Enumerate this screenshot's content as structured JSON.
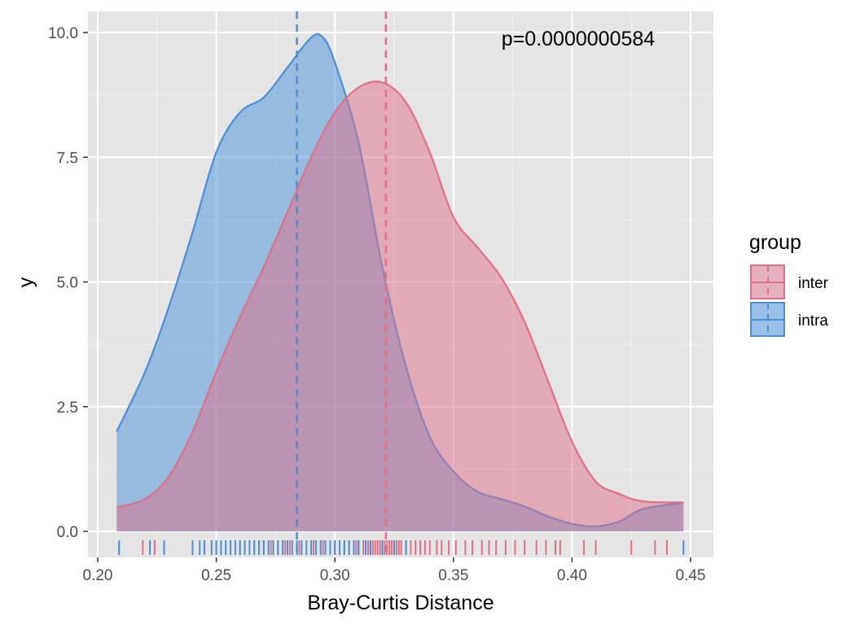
{
  "chart_data": {
    "type": "density",
    "xlabel": "Bray-Curtis Distance",
    "ylabel": "y",
    "xlim": [
      0.2,
      0.45
    ],
    "ylim": [
      0,
      10
    ],
    "x_ticks": [
      "0.20",
      "0.25",
      "0.30",
      "0.35",
      "0.40",
      "0.45"
    ],
    "y_ticks": [
      "0.0",
      "2.5",
      "5.0",
      "7.5",
      "10.0"
    ],
    "annotation": "p=0.0000000584",
    "legend_title": "group",
    "series": [
      {
        "name": "inter",
        "color": "#e07088",
        "mean": 0.3215,
        "density": [
          [
            0.208,
            0.48
          ],
          [
            0.22,
            0.65
          ],
          [
            0.23,
            1.1
          ],
          [
            0.24,
            2.0
          ],
          [
            0.25,
            3.2
          ],
          [
            0.26,
            4.3
          ],
          [
            0.27,
            5.3
          ],
          [
            0.28,
            6.4
          ],
          [
            0.29,
            7.5
          ],
          [
            0.3,
            8.4
          ],
          [
            0.31,
            8.9
          ],
          [
            0.32,
            9.0
          ],
          [
            0.33,
            8.6
          ],
          [
            0.34,
            7.6
          ],
          [
            0.35,
            6.3
          ],
          [
            0.36,
            5.7
          ],
          [
            0.37,
            5.1
          ],
          [
            0.38,
            4.2
          ],
          [
            0.39,
            3.0
          ],
          [
            0.4,
            1.8
          ],
          [
            0.41,
            1.0
          ],
          [
            0.42,
            0.75
          ],
          [
            0.43,
            0.6
          ],
          [
            0.447,
            0.58
          ]
        ],
        "rug": [
          0.209,
          0.219,
          0.224,
          0.245,
          0.26,
          0.266,
          0.27,
          0.273,
          0.276,
          0.279,
          0.281,
          0.285,
          0.291,
          0.295,
          0.3,
          0.304,
          0.306,
          0.309,
          0.31,
          0.312,
          0.314,
          0.315,
          0.316,
          0.317,
          0.318,
          0.319,
          0.32,
          0.321,
          0.322,
          0.323,
          0.324,
          0.325,
          0.326,
          0.327,
          0.328,
          0.33,
          0.332,
          0.334,
          0.336,
          0.338,
          0.34,
          0.343,
          0.345,
          0.348,
          0.351,
          0.355,
          0.358,
          0.362,
          0.365,
          0.368,
          0.372,
          0.376,
          0.38,
          0.385,
          0.389,
          0.393,
          0.395,
          0.405,
          0.41,
          0.425,
          0.435,
          0.44
        ]
      },
      {
        "name": "intra",
        "color": "#4a90d9",
        "mean": 0.284,
        "density": [
          [
            0.208,
            2.0
          ],
          [
            0.22,
            3.2
          ],
          [
            0.23,
            4.5
          ],
          [
            0.24,
            6.0
          ],
          [
            0.25,
            7.6
          ],
          [
            0.26,
            8.4
          ],
          [
            0.27,
            8.7
          ],
          [
            0.28,
            9.3
          ],
          [
            0.29,
            9.9
          ],
          [
            0.295,
            9.9
          ],
          [
            0.3,
            9.4
          ],
          [
            0.31,
            7.8
          ],
          [
            0.32,
            5.3
          ],
          [
            0.33,
            3.3
          ],
          [
            0.34,
            1.9
          ],
          [
            0.35,
            1.2
          ],
          [
            0.36,
            0.8
          ],
          [
            0.37,
            0.65
          ],
          [
            0.38,
            0.5
          ],
          [
            0.39,
            0.3
          ],
          [
            0.4,
            0.15
          ],
          [
            0.41,
            0.1
          ],
          [
            0.42,
            0.2
          ],
          [
            0.43,
            0.45
          ],
          [
            0.447,
            0.57
          ]
        ],
        "rug": [
          0.209,
          0.222,
          0.228,
          0.24,
          0.243,
          0.245,
          0.248,
          0.25,
          0.252,
          0.254,
          0.256,
          0.258,
          0.26,
          0.262,
          0.264,
          0.266,
          0.268,
          0.27,
          0.272,
          0.274,
          0.276,
          0.278,
          0.28,
          0.282,
          0.284,
          0.286,
          0.288,
          0.29,
          0.292,
          0.294,
          0.296,
          0.298,
          0.3,
          0.302,
          0.304,
          0.306,
          0.308,
          0.31,
          0.313,
          0.315,
          0.32,
          0.325,
          0.33,
          0.447
        ]
      }
    ]
  }
}
